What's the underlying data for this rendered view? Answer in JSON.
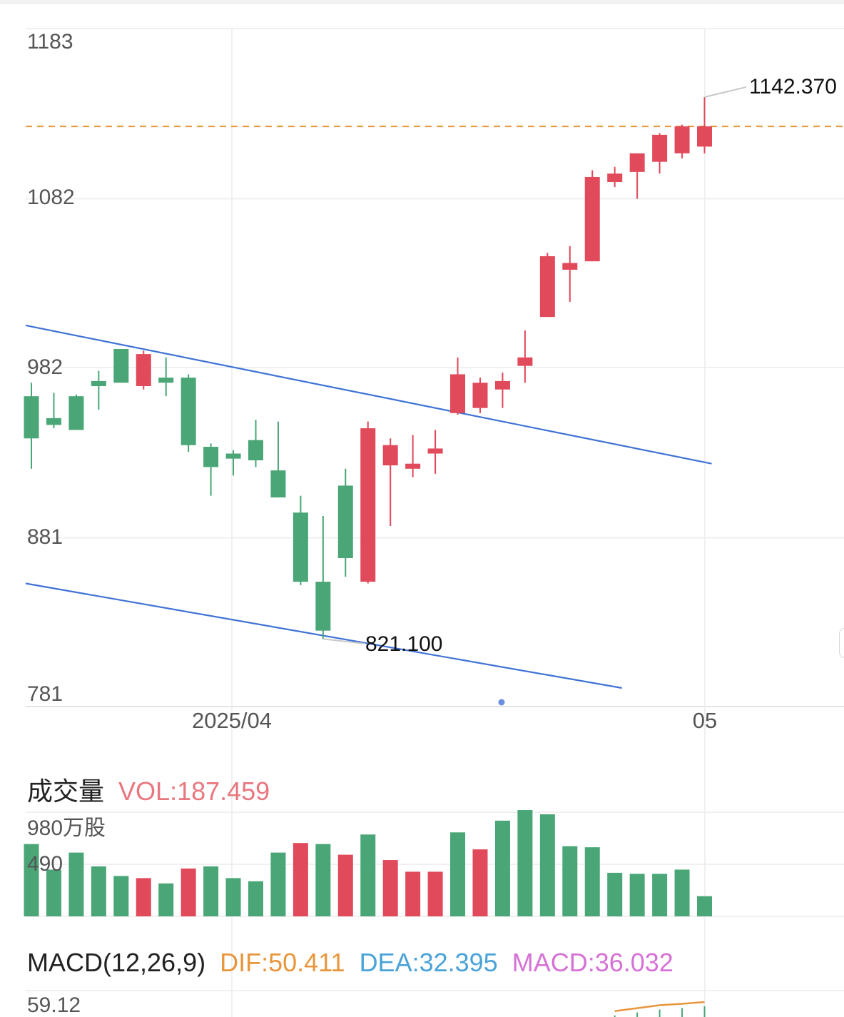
{
  "chart_data": [
    {
      "type": "candlestick",
      "x_tick_labels": [
        "2025/04",
        "05"
      ],
      "y_tick_labels": [
        "1183",
        "1082",
        "982",
        "881",
        "781"
      ],
      "ylim": [
        781,
        1183
      ],
      "colors": {
        "up": "#e14a5b",
        "down": "#4aa676",
        "trendline": "#3f72d6",
        "last_price_line": "#e8963c"
      },
      "annotations": {
        "high_label": "1142.370",
        "low_label": "821.100"
      },
      "last_price": 1125,
      "candles": [
        {
          "open": 965,
          "close": 940,
          "high": 973,
          "low": 922
        },
        {
          "open": 952,
          "close": 948,
          "high": 967,
          "low": 946
        },
        {
          "open": 965,
          "close": 945,
          "high": 966,
          "low": 945
        },
        {
          "open": 974,
          "close": 971,
          "high": 980,
          "low": 957
        },
        {
          "open": 993,
          "close": 973,
          "high": 993,
          "low": 973
        },
        {
          "open": 971,
          "close": 990,
          "high": 992,
          "low": 969
        },
        {
          "open": 976,
          "close": 973,
          "high": 988,
          "low": 965
        },
        {
          "open": 976,
          "close": 936,
          "high": 978,
          "low": 932
        },
        {
          "open": 935,
          "close": 923,
          "high": 937,
          "low": 906
        },
        {
          "open": 931,
          "close": 928,
          "high": 933,
          "low": 918
        },
        {
          "open": 939,
          "close": 927,
          "high": 951,
          "low": 923
        },
        {
          "open": 921,
          "close": 905,
          "high": 950,
          "low": 905
        },
        {
          "open": 896,
          "close": 855,
          "high": 906,
          "low": 853
        },
        {
          "open": 855,
          "close": 826,
          "high": 894,
          "low": 821
        },
        {
          "open": 912,
          "close": 869,
          "high": 922,
          "low": 858
        },
        {
          "open": 855,
          "close": 946,
          "high": 950,
          "low": 854
        },
        {
          "open": 924,
          "close": 936,
          "high": 940,
          "low": 888
        },
        {
          "open": 922,
          "close": 925,
          "high": 942,
          "low": 917
        },
        {
          "open": 931,
          "close": 934,
          "high": 945,
          "low": 919
        },
        {
          "open": 955,
          "close": 978,
          "high": 988,
          "low": 954
        },
        {
          "open": 958,
          "close": 973,
          "high": 976,
          "low": 955
        },
        {
          "open": 969,
          "close": 974,
          "high": 979,
          "low": 958
        },
        {
          "open": 983,
          "close": 988,
          "high": 1004,
          "low": 973
        },
        {
          "open": 1012,
          "close": 1048,
          "high": 1050,
          "low": 1012
        },
        {
          "open": 1040,
          "close": 1044,
          "high": 1054,
          "low": 1021
        },
        {
          "open": 1045,
          "close": 1095,
          "high": 1099,
          "low": 1045
        },
        {
          "open": 1092,
          "close": 1097,
          "high": 1101,
          "low": 1089
        },
        {
          "open": 1098,
          "close": 1109,
          "high": 1109,
          "low": 1082
        },
        {
          "open": 1104,
          "close": 1120,
          "high": 1121,
          "low": 1097
        },
        {
          "open": 1109,
          "close": 1125,
          "high": 1126,
          "low": 1106
        },
        {
          "open": 1113,
          "close": 1125,
          "high": 1142.37,
          "low": 1109
        }
      ],
      "trendlines": [
        {
          "x_index": [
            0,
            30
          ],
          "y": [
            1007,
            925
          ]
        },
        {
          "x_index": [
            0,
            26
          ],
          "y": [
            854,
            792
          ]
        }
      ]
    },
    {
      "type": "bar",
      "title": "成交量",
      "value_label": "VOL:187.459",
      "y_tick_labels": [
        "980万股",
        "490"
      ],
      "ylim": [
        0,
        980
      ],
      "values": [
        680,
        440,
        600,
        470,
        380,
        360,
        310,
        450,
        470,
        360,
        330,
        600,
        690,
        680,
        580,
        770,
        530,
        420,
        420,
        790,
        630,
        900,
        1000,
        960,
        660,
        650,
        410,
        400,
        400,
        440,
        190
      ],
      "colors_per_bar": [
        "down",
        "down",
        "down",
        "down",
        "down",
        "up",
        "down",
        "up",
        "down",
        "down",
        "down",
        "down",
        "up",
        "down",
        "up",
        "down",
        "up",
        "up",
        "up",
        "down",
        "up",
        "down",
        "down",
        "down",
        "down",
        "down",
        "down",
        "down",
        "down",
        "down",
        "down"
      ]
    },
    {
      "type": "line",
      "title": "MACD(12,26,9)",
      "labels": {
        "dif": "DIF:50.411",
        "dea": "DEA:32.395",
        "macd": "MACD:36.032"
      },
      "y_tick_labels": [
        "59.12"
      ],
      "dif_tail": [
        38,
        42,
        46,
        48,
        50.4
      ]
    }
  ]
}
